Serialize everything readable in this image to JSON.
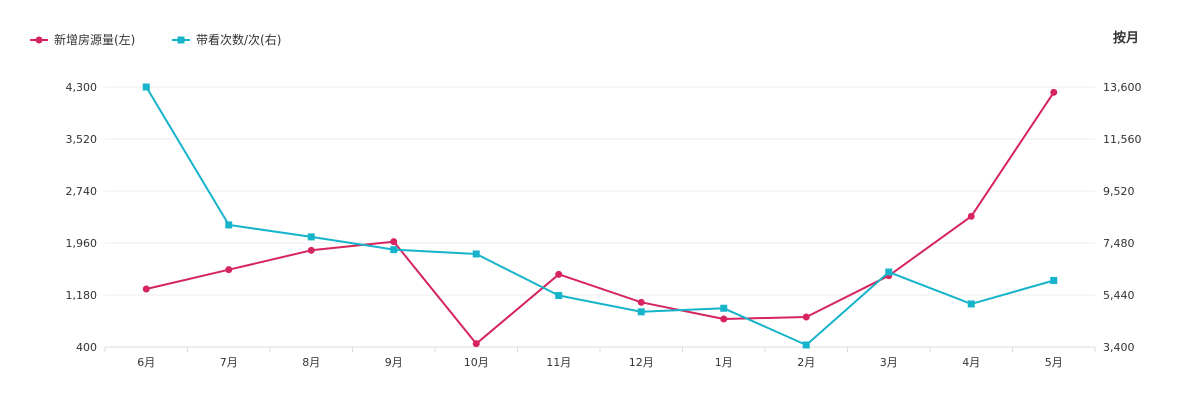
{
  "header": {
    "period_label": "按月"
  },
  "chart_data": {
    "type": "line",
    "categories": [
      "6月",
      "7月",
      "8月",
      "9月",
      "10月",
      "11月",
      "12月",
      "1月",
      "2月",
      "3月",
      "4月",
      "5月"
    ],
    "series": [
      {
        "name": "新增房源量(左)",
        "axis": "left",
        "color": "#d6245f",
        "marker": "circle",
        "values": [
          1270,
          1560,
          1850,
          1980,
          450,
          1490,
          1070,
          820,
          850,
          1470,
          2360,
          4220
        ]
      },
      {
        "name": "带看次数/次(右)",
        "axis": "right",
        "color": "#16b4cb",
        "marker": "square",
        "values": [
          13600,
          8190,
          7720,
          7220,
          7050,
          5420,
          4780,
          4920,
          3480,
          6340,
          5090,
          6010
        ]
      }
    ],
    "y_left": {
      "range": [
        400,
        4300
      ],
      "ticks": [
        "400",
        "1,180",
        "1,960",
        "2,740",
        "3,520",
        "4,300"
      ]
    },
    "y_right": {
      "range": [
        3400,
        13600
      ],
      "ticks": [
        "3,400",
        "5,440",
        "7,480",
        "9,520",
        "11,560",
        "13,600"
      ]
    },
    "grid": "horizontal",
    "legend_position": "top-left"
  }
}
